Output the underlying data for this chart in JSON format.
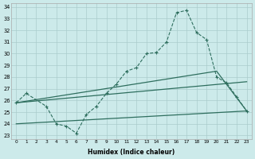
{
  "xlabel": "Humidex (Indice chaleur)",
  "x": [
    0,
    1,
    2,
    3,
    4,
    5,
    6,
    7,
    8,
    9,
    10,
    11,
    12,
    13,
    14,
    15,
    16,
    17,
    18,
    19,
    20,
    21,
    22,
    23
  ],
  "line_dotted": [
    25.8,
    26.6,
    null,
    25.5,
    24.0,
    23.8,
    23.2,
    24.8,
    25.5,
    26.6,
    27.4,
    28.5,
    28.8,
    30.0,
    30.1,
    31.0,
    33.5,
    33.7,
    31.8,
    31.2,
    28.0,
    27.5,
    26.3,
    25.1
  ],
  "line_upper": [
    [
      0,
      25.8
    ],
    [
      20,
      28.5
    ],
    [
      23,
      25.1
    ]
  ],
  "line_mid": [
    [
      0,
      25.8
    ],
    [
      23,
      27.6
    ]
  ],
  "line_lower": [
    [
      0,
      24.0
    ],
    [
      23,
      25.1
    ]
  ],
  "ylim": [
    23,
    34
  ],
  "yticks": [
    23,
    24,
    25,
    26,
    27,
    28,
    29,
    30,
    31,
    32,
    33,
    34
  ],
  "color": "#2e6e5e",
  "bg_color": "#cceaea",
  "grid_color": "#aacccc"
}
